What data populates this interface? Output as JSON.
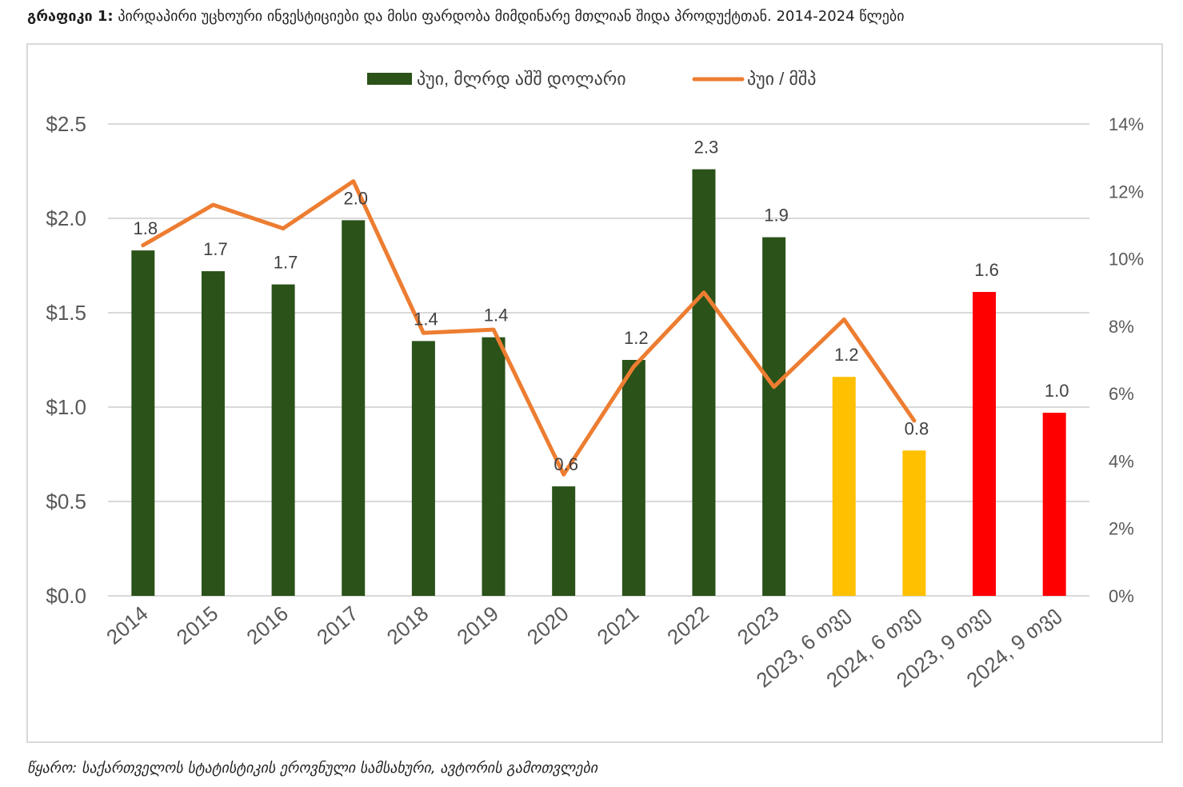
{
  "caption": {
    "label": "გრაფიკი 1:",
    "text": "პირდაპირი უცხოური ინვესტიციები და მისი ფარდობა მიმდინარე მთლიან შიდა პროდუქტთან. 2014-2024 წლები"
  },
  "source": "წყარო: საქართველოს სტატისტიკის ეროვნული სამსახური, ავტორის გამოთვლები",
  "chart_data": {
    "type": "bar",
    "categories": [
      "2014",
      "2015",
      "2016",
      "2017",
      "2018",
      "2019",
      "2020",
      "2021",
      "2022",
      "2023",
      "2023, 6 თვე",
      "2024, 6 თვე",
      "2023, 9 თვე",
      "2024, 9 თვე"
    ],
    "series": [
      {
        "name": "პუი, მლრდ აშშ დოლარი",
        "type": "bar",
        "axis": "left",
        "color": "#2a5219",
        "values": [
          1.83,
          1.72,
          1.65,
          1.99,
          1.35,
          1.37,
          0.58,
          1.25,
          2.26,
          1.9,
          1.16,
          0.77,
          1.61,
          0.97
        ],
        "labels": [
          "1.8",
          "1.7",
          "1.7",
          "2.0",
          "1.4",
          "1.4",
          "0.6",
          "1.2",
          "2.3",
          "1.9",
          "1.2",
          "0.8",
          "1.6",
          "1.0"
        ],
        "bar_colors": [
          "#2a5219",
          "#2a5219",
          "#2a5219",
          "#2a5219",
          "#2a5219",
          "#2a5219",
          "#2a5219",
          "#2a5219",
          "#2a5219",
          "#2a5219",
          "#ffc000",
          "#ffc000",
          "#ff0000",
          "#ff0000"
        ]
      },
      {
        "name": "პუი / მშპ",
        "type": "line",
        "axis": "right",
        "color": "#ed7d31",
        "values": [
          10.4,
          11.6,
          10.9,
          12.3,
          7.8,
          7.9,
          3.6,
          6.8,
          9.0,
          6.2,
          8.2,
          5.2,
          null,
          null
        ]
      }
    ],
    "y_left": {
      "ylim": [
        0,
        2.5
      ],
      "ticks": [
        "$0.0",
        "$0.5",
        "$1.0",
        "$1.5",
        "$2.0",
        "$2.5"
      ]
    },
    "y_right": {
      "ylim": [
        0,
        14
      ],
      "ticks": [
        "0%",
        "2%",
        "4%",
        "6%",
        "8%",
        "10%",
        "12%",
        "14%"
      ]
    },
    "grid": true,
    "legend": "top-center"
  }
}
